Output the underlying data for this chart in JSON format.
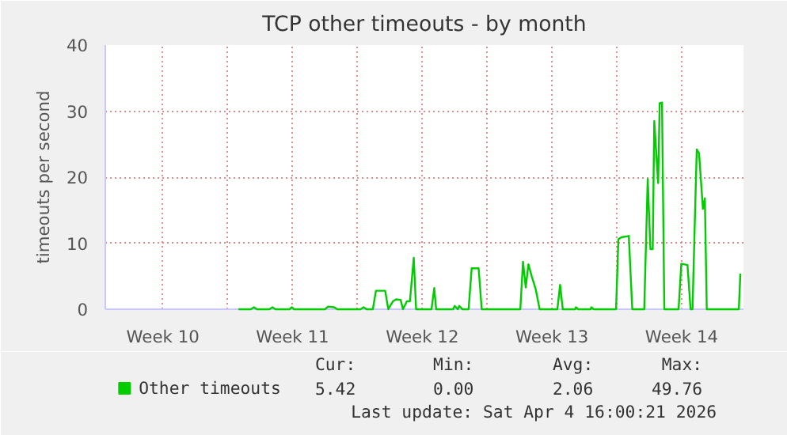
{
  "chart_data": {
    "type": "line",
    "title": "TCP other timeouts - by month",
    "ylabel": "timeouts per second",
    "x": [
      "2026-03-08T14:00",
      "2026-03-09T06:00",
      "2026-03-09T10:00",
      "2026-03-09T14:00",
      "2026-03-10T06:00",
      "2026-03-10T10:00",
      "2026-03-10T14:00",
      "2026-03-11T08:00",
      "2026-03-11T11:00",
      "2026-03-11T14:00",
      "2026-03-13T06:00",
      "2026-03-13T10:00",
      "2026-03-13T18:00",
      "2026-03-13T22:00",
      "2026-03-15T04:00",
      "2026-03-15T08:00",
      "2026-03-15T12:00",
      "2026-03-15T20:00",
      "2026-03-16T00:00",
      "2026-03-16T12:00",
      "2026-03-16T16:00",
      "2026-03-16T22:00",
      "2026-03-17T02:00",
      "2026-03-17T08:00",
      "2026-03-17T11:00",
      "2026-03-17T16:00",
      "2026-03-17T20:00",
      "2026-03-18T01:00",
      "2026-03-18T04:00",
      "2026-03-19T00:00",
      "2026-03-19T03:30",
      "2026-03-19T06:00",
      "2026-03-20T04:00",
      "2026-03-20T06:00",
      "2026-03-20T10:00",
      "2026-03-20T12:00",
      "2026-03-20T16:00",
      "2026-03-21T00:00",
      "2026-03-21T04:00",
      "2026-03-21T13:00",
      "2026-03-21T17:00",
      "2026-03-23T19:00",
      "2026-03-23T22:30",
      "2026-03-24T02:00",
      "2026-03-24T05:30",
      "2026-03-24T10:00",
      "2026-03-24T15:00",
      "2026-03-24T20:00",
      "2026-03-25T19:00",
      "2026-03-25T22:30",
      "2026-03-26T02:00",
      "2026-03-26T18:00",
      "2026-03-26T19:00",
      "2026-03-26T22:00",
      "2026-03-27T14:00",
      "2026-03-27T15:00",
      "2026-03-27T18:00",
      "2026-03-28T23:00",
      "2026-03-29T02:00",
      "2026-03-29T06:00",
      "2026-03-29T15:30",
      "2026-03-29T20:00",
      "2026-03-30T11:30",
      "2026-03-30T16:00",
      "2026-03-30T19:30",
      "2026-03-30T22:30",
      "2026-03-31T00:30",
      "2026-03-31T05:30",
      "2026-03-31T07:30",
      "2026-03-31T10:30",
      "2026-03-31T13:30",
      "2026-04-01T08:00",
      "2026-04-01T11:30",
      "2026-04-01T19:30",
      "2026-04-01T23:30",
      "2026-04-02T02:00",
      "2026-04-02T07:30",
      "2026-04-02T10:30",
      "2026-04-02T15:30",
      "2026-04-02T18:00",
      "2026-04-02T20:30",
      "2026-04-04T14:00",
      "2026-04-04T16:00"
    ],
    "series": [
      {
        "name": "Other timeouts",
        "color": "#00cc00",
        "values": [
          0,
          0,
          0.3,
          0,
          0,
          0.3,
          0,
          0,
          0.3,
          0,
          0,
          0.4,
          0.3,
          0,
          0,
          0.3,
          0,
          0,
          2.8,
          2.8,
          0,
          1.2,
          1.5,
          1.4,
          0,
          1.2,
          1.2,
          7.8,
          0,
          0,
          3.2,
          0,
          0,
          0.5,
          0,
          0.5,
          0,
          0,
          6.2,
          6.2,
          0,
          0,
          7.2,
          3.3,
          6.8,
          4.9,
          3,
          0,
          0,
          3.7,
          0,
          0,
          0.3,
          0,
          0,
          0.3,
          0,
          0,
          10.6,
          10.9,
          11.1,
          0,
          0,
          19.7,
          9.1,
          9.1,
          28.5,
          19.1,
          31.2,
          31.3,
          0,
          0,
          6.9,
          6.7,
          0,
          0,
          24.2,
          23.6,
          15.2,
          16.8,
          0,
          0,
          5.4
        ]
      }
    ],
    "xlim": [
      "2026-03-01T09:30",
      "2026-04-04T20:00"
    ],
    "ylim": [
      0,
      40
    ],
    "xticks": [
      {
        "value": "2026-03-04T12:00",
        "label": "Week 10"
      },
      {
        "value": "2026-03-08",
        "label": null
      },
      {
        "value": "2026-03-11T12:00",
        "label": "Week 11"
      },
      {
        "value": "2026-03-15",
        "label": null
      },
      {
        "value": "2026-03-18T12:00",
        "label": "Week 12"
      },
      {
        "value": "2026-03-22",
        "label": null
      },
      {
        "value": "2026-03-25T12:00",
        "label": "Week 13"
      },
      {
        "value": "2026-03-29",
        "label": null
      },
      {
        "value": "2026-04-01T12:00",
        "label": "Week 14"
      }
    ],
    "yticks": [
      0,
      10,
      20,
      30,
      40
    ],
    "grid": true,
    "legend": "bottom left",
    "marker": "none",
    "line_style": "solid",
    "annotations": [
      "Cur:",
      "Min:",
      "Avg:",
      "Max:",
      "5.42",
      "0.00",
      "2.06",
      "49.76",
      "Last update: Sat Apr  4 16:00:21 2026"
    ]
  }
}
